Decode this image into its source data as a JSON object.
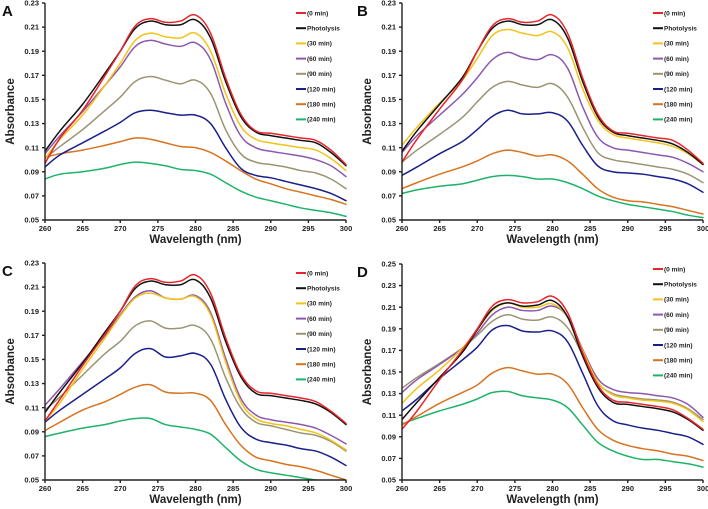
{
  "figure": {
    "series_names": [
      "(0 min)",
      "Photolysis",
      "(30 min)",
      "(60 min)",
      "(90 min)",
      "(120 min)",
      "(180 min)",
      "(240 min)"
    ],
    "series_colors": {
      "(0 min)": "#E8262A",
      "Photolysis": "#111111",
      "(30 min)": "#F2C318",
      "(60 min)": "#8B58B0",
      "(90 min)": "#9B9472",
      "(120 min)": "#1A1F8A",
      "(180 min)": "#D8731F",
      "(240 min)": "#1EB36A"
    }
  },
  "chart_data": [
    {
      "type": "line",
      "panel": "A",
      "title": "",
      "xlabel": "Wavelength (nm)",
      "ylabel": "Absorbance",
      "xlim": [
        260,
        300
      ],
      "ylim": [
        0.05,
        0.23
      ],
      "x_ticks": [
        "260",
        "265",
        "270",
        "275",
        "280",
        "285",
        "290",
        "295",
        "300"
      ],
      "y_ticks": [
        "0.05",
        "0.07",
        "0.09",
        "0.11",
        "0.13",
        "0.15",
        "0.17",
        "0.19",
        "0.21",
        "0.23"
      ],
      "grid": false,
      "legend": "top-right",
      "x": [
        260,
        262,
        265,
        268,
        270,
        272,
        274,
        276,
        278,
        280,
        282,
        284,
        286,
        288,
        290,
        292,
        294,
        296,
        298,
        300
      ],
      "series": [
        {
          "name": "(0 min)",
          "values": [
            0.097,
            0.118,
            0.141,
            0.17,
            0.19,
            0.211,
            0.217,
            0.214,
            0.215,
            0.22,
            0.205,
            0.168,
            0.138,
            0.124,
            0.122,
            0.12,
            0.118,
            0.116,
            0.108,
            0.096
          ]
        },
        {
          "name": "Photolysis",
          "values": [
            0.107,
            0.124,
            0.146,
            0.172,
            0.19,
            0.209,
            0.215,
            0.212,
            0.212,
            0.216,
            0.201,
            0.165,
            0.136,
            0.123,
            0.12,
            0.118,
            0.116,
            0.114,
            0.106,
            0.095
          ]
        },
        {
          "name": "(30 min)",
          "values": [
            0.101,
            0.117,
            0.137,
            0.162,
            0.18,
            0.199,
            0.205,
            0.202,
            0.201,
            0.205,
            0.19,
            0.155,
            0.128,
            0.117,
            0.114,
            0.112,
            0.11,
            0.108,
            0.101,
            0.091
          ]
        },
        {
          "name": "(60 min)",
          "values": [
            0.105,
            0.12,
            0.14,
            0.162,
            0.177,
            0.194,
            0.199,
            0.196,
            0.194,
            0.197,
            0.183,
            0.147,
            0.12,
            0.11,
            0.107,
            0.105,
            0.103,
            0.1,
            0.095,
            0.086
          ]
        },
        {
          "name": "(90 min)",
          "values": [
            0.101,
            0.111,
            0.125,
            0.141,
            0.152,
            0.165,
            0.169,
            0.166,
            0.163,
            0.166,
            0.155,
            0.125,
            0.105,
            0.098,
            0.096,
            0.094,
            0.091,
            0.089,
            0.084,
            0.076
          ]
        },
        {
          "name": "(120 min)",
          "values": [
            0.094,
            0.104,
            0.114,
            0.124,
            0.131,
            0.139,
            0.141,
            0.139,
            0.137,
            0.137,
            0.13,
            0.11,
            0.093,
            0.087,
            0.085,
            0.082,
            0.079,
            0.076,
            0.072,
            0.066
          ]
        },
        {
          "name": "(180 min)",
          "values": [
            0.102,
            0.105,
            0.108,
            0.112,
            0.115,
            0.118,
            0.117,
            0.114,
            0.111,
            0.11,
            0.106,
            0.099,
            0.091,
            0.084,
            0.08,
            0.076,
            0.073,
            0.07,
            0.067,
            0.063
          ]
        },
        {
          "name": "(240 min)",
          "values": [
            0.084,
            0.088,
            0.09,
            0.093,
            0.096,
            0.098,
            0.097,
            0.095,
            0.092,
            0.091,
            0.088,
            0.081,
            0.074,
            0.069,
            0.066,
            0.063,
            0.06,
            0.058,
            0.056,
            0.053
          ]
        }
      ]
    },
    {
      "type": "line",
      "panel": "B",
      "title": "",
      "xlabel": "Wavelength (nm)",
      "ylabel": "Absorbance",
      "xlim": [
        260,
        300
      ],
      "ylim": [
        0.05,
        0.23
      ],
      "x_ticks": [
        "260",
        "265",
        "270",
        "275",
        "280",
        "285",
        "290",
        "295",
        "300"
      ],
      "y_ticks": [
        "0.05",
        "0.07",
        "0.09",
        "0.11",
        "0.13",
        "0.15",
        "0.17",
        "0.19",
        "0.21",
        "0.23"
      ],
      "grid": false,
      "legend": "top-right",
      "x": [
        260,
        262,
        265,
        268,
        270,
        272,
        274,
        276,
        278,
        280,
        282,
        284,
        286,
        288,
        290,
        292,
        294,
        296,
        298,
        300
      ],
      "series": [
        {
          "name": "(0 min)",
          "values": [
            0.098,
            0.117,
            0.142,
            0.166,
            0.19,
            0.211,
            0.217,
            0.214,
            0.215,
            0.22,
            0.205,
            0.168,
            0.138,
            0.124,
            0.122,
            0.12,
            0.118,
            0.116,
            0.108,
            0.097
          ]
        },
        {
          "name": "Photolysis",
          "values": [
            0.107,
            0.124,
            0.146,
            0.168,
            0.19,
            0.209,
            0.215,
            0.212,
            0.212,
            0.216,
            0.201,
            0.165,
            0.136,
            0.123,
            0.12,
            0.118,
            0.116,
            0.113,
            0.106,
            0.096
          ]
        },
        {
          "name": "(30 min)",
          "values": [
            0.112,
            0.127,
            0.147,
            0.166,
            0.184,
            0.203,
            0.208,
            0.205,
            0.203,
            0.206,
            0.193,
            0.159,
            0.133,
            0.121,
            0.118,
            0.116,
            0.114,
            0.111,
            0.105,
            0.096
          ]
        },
        {
          "name": "(60 min)",
          "values": [
            0.106,
            0.12,
            0.137,
            0.154,
            0.168,
            0.183,
            0.189,
            0.185,
            0.183,
            0.187,
            0.176,
            0.144,
            0.119,
            0.11,
            0.108,
            0.106,
            0.104,
            0.102,
            0.097,
            0.09
          ]
        },
        {
          "name": "(90 min)",
          "values": [
            0.098,
            0.108,
            0.121,
            0.135,
            0.148,
            0.16,
            0.165,
            0.162,
            0.16,
            0.163,
            0.152,
            0.127,
            0.106,
            0.1,
            0.098,
            0.096,
            0.094,
            0.092,
            0.088,
            0.081
          ]
        },
        {
          "name": "(120 min)",
          "values": [
            0.087,
            0.094,
            0.105,
            0.115,
            0.125,
            0.136,
            0.141,
            0.138,
            0.138,
            0.139,
            0.132,
            0.112,
            0.095,
            0.09,
            0.089,
            0.088,
            0.086,
            0.084,
            0.08,
            0.073
          ]
        },
        {
          "name": "(180 min)",
          "values": [
            0.076,
            0.081,
            0.088,
            0.094,
            0.099,
            0.105,
            0.108,
            0.106,
            0.103,
            0.104,
            0.099,
            0.088,
            0.076,
            0.069,
            0.066,
            0.065,
            0.063,
            0.061,
            0.058,
            0.055
          ]
        },
        {
          "name": "(240 min)",
          "values": [
            0.072,
            0.075,
            0.078,
            0.08,
            0.083,
            0.086,
            0.087,
            0.086,
            0.084,
            0.084,
            0.081,
            0.076,
            0.07,
            0.066,
            0.063,
            0.061,
            0.059,
            0.057,
            0.054,
            0.052
          ]
        }
      ]
    },
    {
      "type": "line",
      "panel": "C",
      "title": "",
      "xlabel": "Wavelength (nm)",
      "ylabel": "Absorbance",
      "xlim": [
        260,
        300
      ],
      "ylim": [
        0.05,
        0.23
      ],
      "x_ticks": [
        "260",
        "265",
        "270",
        "275",
        "280",
        "285",
        "290",
        "295",
        "300"
      ],
      "y_ticks": [
        "0.05",
        "0.07",
        "0.09",
        "0.11",
        "0.13",
        "0.15",
        "0.17",
        "0.19",
        "0.21",
        "0.23"
      ],
      "grid": false,
      "legend": "top-right",
      "x": [
        260,
        262,
        265,
        268,
        270,
        272,
        274,
        276,
        278,
        280,
        282,
        284,
        286,
        288,
        290,
        292,
        294,
        296,
        298,
        300
      ],
      "series": [
        {
          "name": "(0 min)",
          "values": [
            0.099,
            0.117,
            0.145,
            0.171,
            0.19,
            0.211,
            0.217,
            0.214,
            0.215,
            0.22,
            0.205,
            0.168,
            0.138,
            0.124,
            0.122,
            0.12,
            0.118,
            0.115,
            0.107,
            0.097
          ]
        },
        {
          "name": "Photolysis",
          "values": [
            0.106,
            0.123,
            0.147,
            0.173,
            0.19,
            0.209,
            0.215,
            0.212,
            0.212,
            0.216,
            0.201,
            0.165,
            0.136,
            0.122,
            0.12,
            0.118,
            0.116,
            0.113,
            0.106,
            0.096
          ]
        },
        {
          "name": "(30 min)",
          "values": [
            0.099,
            0.114,
            0.142,
            0.168,
            0.186,
            0.201,
            0.205,
            0.201,
            0.2,
            0.202,
            0.187,
            0.148,
            0.115,
            0.101,
            0.097,
            0.095,
            0.092,
            0.089,
            0.083,
            0.075
          ]
        },
        {
          "name": "(60 min)",
          "values": [
            0.112,
            0.126,
            0.148,
            0.17,
            0.187,
            0.202,
            0.207,
            0.201,
            0.2,
            0.203,
            0.189,
            0.151,
            0.118,
            0.104,
            0.1,
            0.098,
            0.096,
            0.093,
            0.087,
            0.08
          ]
        },
        {
          "name": "(90 min)",
          "values": [
            0.108,
            0.119,
            0.137,
            0.155,
            0.165,
            0.178,
            0.182,
            0.176,
            0.176,
            0.178,
            0.167,
            0.135,
            0.11,
            0.098,
            0.095,
            0.092,
            0.089,
            0.087,
            0.082,
            0.074
          ]
        },
        {
          "name": "(120 min)",
          "values": [
            0.098,
            0.108,
            0.121,
            0.134,
            0.143,
            0.155,
            0.159,
            0.152,
            0.153,
            0.155,
            0.146,
            0.117,
            0.094,
            0.084,
            0.081,
            0.079,
            0.076,
            0.074,
            0.069,
            0.062
          ]
        },
        {
          "name": "(180 min)",
          "values": [
            0.091,
            0.098,
            0.108,
            0.115,
            0.121,
            0.127,
            0.129,
            0.123,
            0.122,
            0.122,
            0.116,
            0.096,
            0.079,
            0.069,
            0.066,
            0.063,
            0.061,
            0.058,
            0.054,
            0.05
          ]
        },
        {
          "name": "(240 min)",
          "values": [
            0.086,
            0.089,
            0.093,
            0.096,
            0.099,
            0.101,
            0.101,
            0.096,
            0.094,
            0.092,
            0.088,
            0.077,
            0.066,
            0.059,
            0.056,
            0.054,
            0.052,
            0.05,
            0.049,
            0.048
          ]
        }
      ]
    },
    {
      "type": "line",
      "panel": "D",
      "title": "",
      "xlabel": "Wavelength (nm)",
      "ylabel": "Absorbance",
      "xlim": [
        260,
        300
      ],
      "ylim": [
        0.05,
        0.25
      ],
      "x_ticks": [
        "260",
        "265",
        "270",
        "275",
        "280",
        "285",
        "290",
        "295",
        "300"
      ],
      "y_ticks": [
        "0.05",
        "0.07",
        "0.09",
        "0.11",
        "0.13",
        "0.15",
        "0.17",
        "0.19",
        "0.21",
        "0.23",
        "0.25"
      ],
      "grid": false,
      "legend": "top-right",
      "x": [
        260,
        262,
        265,
        268,
        270,
        272,
        274,
        276,
        278,
        280,
        282,
        284,
        286,
        288,
        290,
        292,
        294,
        296,
        298,
        300
      ],
      "series": [
        {
          "name": "(0 min)",
          "values": [
            0.097,
            0.114,
            0.143,
            0.17,
            0.19,
            0.211,
            0.217,
            0.214,
            0.215,
            0.22,
            0.205,
            0.168,
            0.138,
            0.124,
            0.122,
            0.12,
            0.118,
            0.115,
            0.107,
            0.097
          ]
        },
        {
          "name": "Photolysis",
          "values": [
            0.106,
            0.122,
            0.145,
            0.168,
            0.189,
            0.208,
            0.214,
            0.211,
            0.212,
            0.216,
            0.201,
            0.165,
            0.136,
            0.122,
            0.12,
            0.118,
            0.116,
            0.113,
            0.106,
            0.096
          ]
        },
        {
          "name": "(30 min)",
          "values": [
            0.121,
            0.135,
            0.152,
            0.172,
            0.189,
            0.207,
            0.214,
            0.21,
            0.21,
            0.213,
            0.201,
            0.17,
            0.141,
            0.129,
            0.126,
            0.124,
            0.123,
            0.121,
            0.115,
            0.104
          ]
        },
        {
          "name": "(60 min)",
          "values": [
            0.131,
            0.143,
            0.157,
            0.172,
            0.186,
            0.203,
            0.21,
            0.207,
            0.207,
            0.211,
            0.201,
            0.171,
            0.144,
            0.134,
            0.131,
            0.13,
            0.128,
            0.126,
            0.12,
            0.108
          ]
        },
        {
          "name": "(90 min)",
          "values": [
            0.135,
            0.145,
            0.158,
            0.172,
            0.184,
            0.197,
            0.203,
            0.199,
            0.198,
            0.201,
            0.191,
            0.166,
            0.14,
            0.13,
            0.127,
            0.125,
            0.124,
            0.122,
            0.116,
            0.106
          ]
        },
        {
          "name": "(120 min)",
          "values": [
            0.114,
            0.125,
            0.144,
            0.161,
            0.173,
            0.189,
            0.193,
            0.188,
            0.187,
            0.188,
            0.178,
            0.149,
            0.119,
            0.105,
            0.101,
            0.098,
            0.096,
            0.093,
            0.09,
            0.083
          ]
        },
        {
          "name": "(180 min)",
          "values": [
            0.101,
            0.109,
            0.121,
            0.131,
            0.138,
            0.149,
            0.154,
            0.151,
            0.148,
            0.148,
            0.139,
            0.117,
            0.097,
            0.087,
            0.082,
            0.079,
            0.077,
            0.074,
            0.072,
            0.068
          ]
        },
        {
          "name": "(240 min)",
          "values": [
            0.102,
            0.107,
            0.114,
            0.12,
            0.125,
            0.131,
            0.132,
            0.128,
            0.126,
            0.124,
            0.117,
            0.101,
            0.085,
            0.077,
            0.072,
            0.069,
            0.069,
            0.067,
            0.065,
            0.062
          ]
        }
      ]
    }
  ]
}
